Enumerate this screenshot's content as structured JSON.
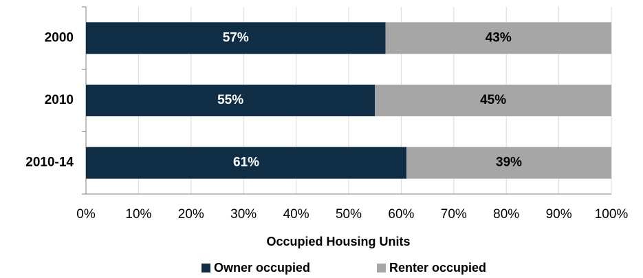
{
  "chart_data": {
    "type": "stacked_barh",
    "categories": [
      "2000",
      "2010",
      "2010-14"
    ],
    "series": [
      {
        "name": "Owner occupied",
        "color": "#0f2d45",
        "values": [
          57,
          55,
          61
        ],
        "value_labels": [
          "57%",
          "55%",
          "61%"
        ]
      },
      {
        "name": "Renter occupied",
        "color": "#a6a6a6",
        "values": [
          43,
          45,
          39
        ],
        "value_labels": [
          "43%",
          "45%",
          "39%"
        ]
      }
    ],
    "xlabel": "Occupied Housing Units",
    "xlim": [
      0,
      100
    ],
    "xticks": [
      {
        "value": 0,
        "label": "0%"
      },
      {
        "value": 10,
        "label": "10%"
      },
      {
        "value": 20,
        "label": "20%"
      },
      {
        "value": 30,
        "label": "30%"
      },
      {
        "value": 40,
        "label": "40%"
      },
      {
        "value": 50,
        "label": "50%"
      },
      {
        "value": 60,
        "label": "60%"
      },
      {
        "value": 70,
        "label": "70%"
      },
      {
        "value": 80,
        "label": "80%"
      },
      {
        "value": 90,
        "label": "90%"
      },
      {
        "value": 100,
        "label": "100%"
      }
    ],
    "grid": true,
    "legend": "bottom"
  }
}
